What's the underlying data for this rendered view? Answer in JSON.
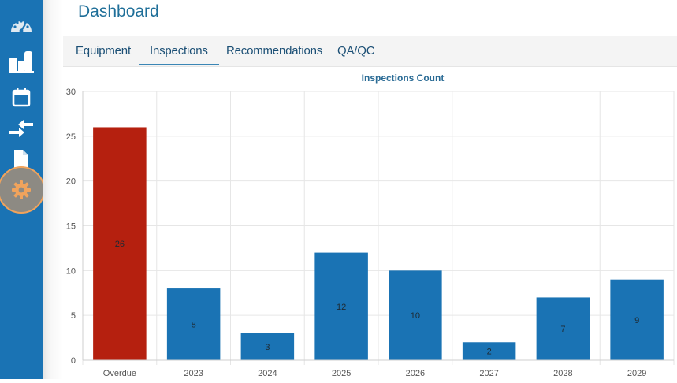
{
  "page": {
    "title": "Dashboard"
  },
  "sidebar": {
    "items": [
      {
        "icon": "speedometer-icon"
      },
      {
        "icon": "facility-icon"
      },
      {
        "icon": "calendar-icon"
      },
      {
        "icon": "transfer-arrows-icon"
      },
      {
        "icon": "document-icon"
      },
      {
        "icon": "gear-icon",
        "active": true
      }
    ],
    "colors": {
      "background": "#1a73b4",
      "active_highlight": "#f0a35c"
    }
  },
  "tabs": [
    {
      "label": "Equipment",
      "active": false
    },
    {
      "label": "Inspections",
      "active": true
    },
    {
      "label": "Recommendations",
      "active": false
    },
    {
      "label": "QA/QC",
      "active": false
    }
  ],
  "chart_data": {
    "type": "bar",
    "title": "Inspections Count",
    "categories": [
      "Overdue",
      "2023",
      "2024",
      "2025",
      "2026",
      "2027",
      "2028",
      "2029"
    ],
    "values": [
      26,
      8,
      3,
      12,
      10,
      2,
      7,
      9
    ],
    "bar_colors": [
      "#b5200f",
      "#1a73b4",
      "#1a73b4",
      "#1a73b4",
      "#1a73b4",
      "#1a73b4",
      "#1a73b4",
      "#1a73b4"
    ],
    "xlabel": "",
    "ylabel": "",
    "ylim": [
      0,
      30
    ],
    "yticks": [
      0,
      5,
      10,
      15,
      20,
      25,
      30
    ],
    "grid": true,
    "legend": false
  }
}
